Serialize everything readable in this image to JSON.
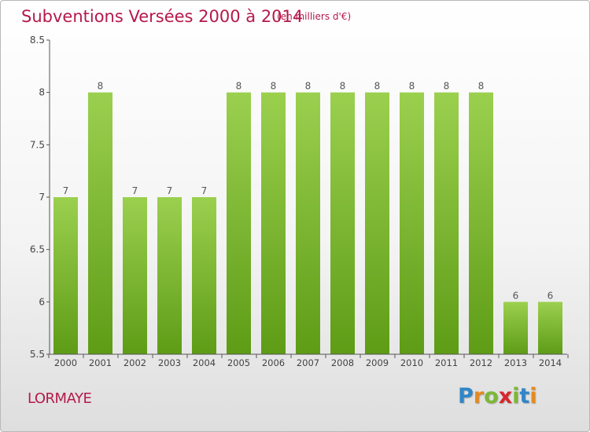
{
  "title": "Subventions Versées 2000 à 2014",
  "subtitle": "(en milliers d'€)",
  "commune": "LORMAYE",
  "logo": {
    "letters": [
      "P",
      "r",
      "o",
      "x",
      "i",
      "t",
      "i"
    ],
    "colors": [
      "#2f86c8",
      "#e58a1f",
      "#7bb834",
      "#d8262d",
      "#7bb834",
      "#2f86c8",
      "#e58a1f"
    ]
  },
  "colors": {
    "title": "#b5194b",
    "bar_top": "#9bd04f",
    "bar_bottom": "#5e9c16",
    "axis": "#555555",
    "grid": "#d0d0d0"
  },
  "chart_data": {
    "type": "bar",
    "categories": [
      "2000",
      "2001",
      "2002",
      "2003",
      "2004",
      "2005",
      "2006",
      "2007",
      "2008",
      "2009",
      "2010",
      "2011",
      "2012",
      "2013",
      "2014"
    ],
    "values": [
      7,
      8,
      7,
      7,
      7,
      8,
      8,
      8,
      8,
      8,
      8,
      8,
      8,
      6,
      6
    ],
    "data_labels": [
      "7",
      "8",
      "7",
      "7",
      "7",
      "8",
      "8",
      "8",
      "8",
      "8",
      "8",
      "8",
      "8",
      "6",
      "6"
    ],
    "ylim": [
      5.5,
      8.5
    ],
    "yticks": [
      5.5,
      6,
      6.5,
      7,
      7.5,
      8,
      8.5
    ],
    "ytick_labels": [
      "5.5",
      "6",
      "6.5",
      "7",
      "7.5",
      "8",
      "8.5"
    ],
    "grid": false,
    "xlabel": "",
    "ylabel": ""
  }
}
